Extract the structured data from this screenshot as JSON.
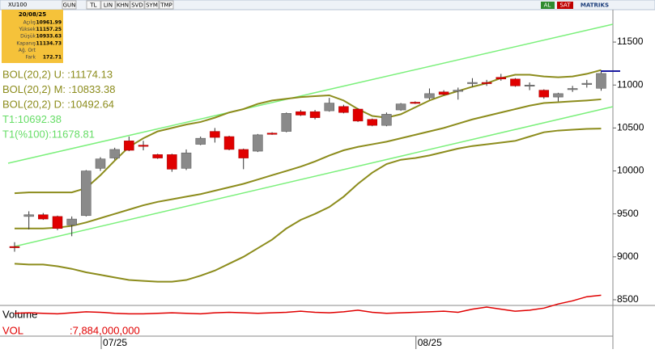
{
  "toolbar": {
    "symbol": "XU100",
    "buttons": [
      "GUN",
      "TL",
      "LIN",
      "KHN",
      "SVD",
      "SYM",
      "TMP"
    ],
    "buy": "AL",
    "sell": "SAT",
    "brand": "MATRIKS"
  },
  "info_panel": {
    "date": "20/08/25",
    "rows": [
      {
        "label": "Açılış",
        "value": 10961.99
      },
      {
        "label": "Yüksek",
        "value": 11157.25
      },
      {
        "label": "Düşük",
        "value": 10933.63
      },
      {
        "label": "Kapanış",
        "value": 11134.73
      },
      {
        "label": "Ağ. Ort"
      },
      {
        "label": "Fark",
        "value": 172.71
      }
    ]
  },
  "chart_data": {
    "type": "candlestick",
    "annotations": [
      "BOL(20,2) U:   :11174.13",
      "BOL(20,2) M:   :10833.38",
      "BOL(20,2) D:   :10492.64",
      "T1:10692.38",
      "T1(%100):11678.81"
    ],
    "categories": [
      null,
      null,
      null,
      null,
      null,
      null,
      "07/25",
      null,
      null,
      null,
      null,
      null,
      null,
      null,
      null,
      null,
      null,
      null,
      null,
      null,
      null,
      null,
      null,
      null,
      null,
      null,
      null,
      null,
      "08/25",
      null,
      null,
      null,
      null,
      null,
      null,
      null,
      null,
      null,
      null,
      null,
      null,
      null
    ],
    "ylim": [
      8434,
      11877
    ],
    "yticks": [
      8500,
      9000,
      9500,
      10000,
      10500,
      11000,
      11500
    ],
    "up_color": "#8a8a8a",
    "down_color": "#e00000",
    "open": [
      9120,
      9470,
      9490,
      9470,
      9370,
      9480,
      10030,
      10150,
      10350,
      10300,
      10190,
      10190,
      10030,
      10310,
      10460,
      10400,
      10250,
      10230,
      10440,
      10460,
      10690,
      10690,
      10700,
      10750,
      10720,
      10600,
      10530,
      10710,
      10800,
      10850,
      10920,
      10930,
      11020,
      11030,
      11090,
      11070,
      10990,
      10940,
      10860,
      10950,
      11010,
      10961.99
    ],
    "high": [
      9170,
      9530,
      9510,
      9480,
      9470,
      10010,
      10160,
      10270,
      10400,
      10350,
      10200,
      10200,
      10250,
      10400,
      10500,
      10410,
      10260,
      10430,
      10450,
      10680,
      10710,
      10710,
      10850,
      10770,
      10730,
      10610,
      10680,
      10790,
      10810,
      10960,
      10940,
      10970,
      11080,
      11060,
      11130,
      11080,
      11030,
      10950,
      10910,
      10990,
      11060,
      11157.25
    ],
    "low": [
      9060,
      9320,
      9430,
      9310,
      9240,
      9470,
      10000,
      10130,
      10230,
      10240,
      10140,
      9990,
      10010,
      10300,
      10330,
      10240,
      10020,
      10220,
      10420,
      10450,
      10640,
      10600,
      10690,
      10670,
      10570,
      10520,
      10520,
      10700,
      10780,
      10830,
      10880,
      10830,
      10980,
      10990,
      11050,
      10980,
      10940,
      10840,
      10810,
      10920,
      10970,
      10933.63
    ],
    "close": [
      9110,
      9490,
      9440,
      9330,
      9440,
      10000,
      10140,
      10250,
      10240,
      10290,
      10150,
      10020,
      10210,
      10380,
      10390,
      10250,
      10150,
      10420,
      10430,
      10670,
      10650,
      10620,
      10790,
      10680,
      10580,
      10530,
      10660,
      10780,
      10790,
      10900,
      10890,
      10940,
      11030,
      11020,
      11070,
      10990,
      11000,
      10860,
      10900,
      10960,
      11020,
      11134.73
    ],
    "series": [
      {
        "name": "BOL U",
        "color": "#8c8c1c",
        "values": [
          9740,
          9750,
          9750,
          9750,
          9750,
          9800,
          9950,
          10120,
          10280,
          10380,
          10460,
          10500,
          10540,
          10570,
          10620,
          10680,
          10720,
          10780,
          10820,
          10840,
          10860,
          10870,
          10880,
          10820,
          10720,
          10640,
          10620,
          10660,
          10740,
          10820,
          10880,
          10930,
          10980,
          11020,
          11080,
          11120,
          11120,
          11100,
          11090,
          11100,
          11130,
          11174.13
        ]
      },
      {
        "name": "BOL M",
        "color": "#8c8c1c",
        "values": [
          9330,
          9330,
          9330,
          9340,
          9360,
          9400,
          9450,
          9500,
          9550,
          9600,
          9640,
          9670,
          9700,
          9730,
          9770,
          9810,
          9850,
          9900,
          9950,
          10000,
          10050,
          10110,
          10180,
          10240,
          10280,
          10310,
          10340,
          10380,
          10420,
          10460,
          10500,
          10550,
          10600,
          10640,
          10680,
          10720,
          10760,
          10790,
          10800,
          10810,
          10820,
          10833.38
        ]
      },
      {
        "name": "BOL D",
        "color": "#8c8c1c",
        "values": [
          8920,
          8910,
          8910,
          8890,
          8860,
          8820,
          8790,
          8760,
          8730,
          8720,
          8710,
          8710,
          8730,
          8780,
          8840,
          8920,
          9000,
          9100,
          9200,
          9330,
          9430,
          9500,
          9580,
          9700,
          9850,
          9980,
          10080,
          10130,
          10150,
          10180,
          10220,
          10260,
          10290,
          10310,
          10330,
          10350,
          10400,
          10450,
          10470,
          10480,
          10490,
          10492.64
        ]
      }
    ],
    "volume": {
      "title": "Volume",
      "label": "VOL",
      "value_text": ":7,884,000,000",
      "color": "#e00000",
      "ylim": [
        0,
        8720000000
      ],
      "values": [
        4400000000,
        4500000000,
        4400000000,
        4300000000,
        4500000000,
        4700000000,
        4600000000,
        4400000000,
        4300000000,
        4300000000,
        4400000000,
        4500000000,
        4400000000,
        4300000000,
        4500000000,
        4600000000,
        4500000000,
        4400000000,
        4500000000,
        4600000000,
        4800000000,
        4600000000,
        4500000000,
        4700000000,
        5000000000,
        4600000000,
        4400000000,
        4500000000,
        4600000000,
        4700000000,
        4800000000,
        4600000000,
        5200000000,
        5600000000,
        5200000000,
        4800000000,
        5000000000,
        5400000000,
        6200000000,
        6800000000,
        7600000000,
        7884000000
      ]
    }
  }
}
